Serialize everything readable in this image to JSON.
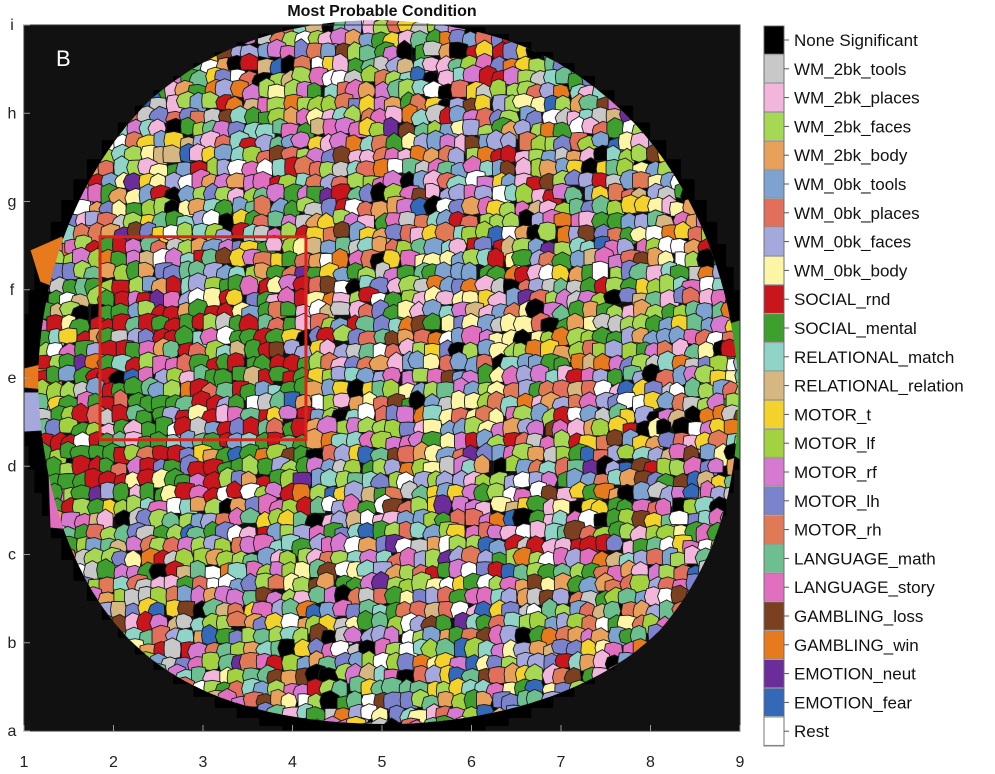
{
  "chart_data": {
    "type": "heatmap",
    "title": "Most Probable Condition",
    "panel_label": "B",
    "xlabel": "",
    "ylabel": "",
    "xlim": [
      1,
      9
    ],
    "ylim": [
      1,
      9
    ],
    "x_ticks": [
      "1",
      "2",
      "3",
      "4",
      "5",
      "6",
      "7",
      "8",
      "9"
    ],
    "y_ticks": [
      "a",
      "b",
      "c",
      "d",
      "e",
      "f",
      "g",
      "h",
      "i"
    ],
    "background_color": "#111111",
    "grid": false,
    "legend_position": "right",
    "highlight_box": {
      "x": [
        1.85,
        4.15
      ],
      "y": [
        4.3,
        6.6
      ],
      "color": "#d9241c"
    },
    "categories": [
      {
        "name": "None Significant",
        "color": "#000000"
      },
      {
        "name": "WM_2bk_tools",
        "color": "#c8c8c8"
      },
      {
        "name": "WM_2bk_places",
        "color": "#f2b6dc"
      },
      {
        "name": "WM_2bk_faces",
        "color": "#a6d854"
      },
      {
        "name": "WM_2bk_body",
        "color": "#e8a15b"
      },
      {
        "name": "WM_0bk_tools",
        "color": "#7fa3d1"
      },
      {
        "name": "WM_0bk_places",
        "color": "#e26f5b"
      },
      {
        "name": "WM_0bk_faces",
        "color": "#a4a8dc"
      },
      {
        "name": "WM_0bk_body",
        "color": "#fdf5a6"
      },
      {
        "name": "SOCIAL_rnd",
        "color": "#c8161c"
      },
      {
        "name": "SOCIAL_mental",
        "color": "#3e9e2e"
      },
      {
        "name": "RELATIONAL_match",
        "color": "#8fd4c7"
      },
      {
        "name": "RELATIONAL_relation",
        "color": "#d6b681"
      },
      {
        "name": "MOTOR_t",
        "color": "#f2d22b"
      },
      {
        "name": "MOTOR_lf",
        "color": "#a2d23f"
      },
      {
        "name": "MOTOR_rf",
        "color": "#d57ad0"
      },
      {
        "name": "MOTOR_lh",
        "color": "#7b83cc"
      },
      {
        "name": "MOTOR_rh",
        "color": "#e07a56"
      },
      {
        "name": "LANGUAGE_math",
        "color": "#6dbf90"
      },
      {
        "name": "LANGUAGE_story",
        "color": "#e16fc0"
      },
      {
        "name": "GAMBLING_loss",
        "color": "#7a4020"
      },
      {
        "name": "GAMBLING_win",
        "color": "#e87a1e"
      },
      {
        "name": "EMOTION_neut",
        "color": "#6a2d9a"
      },
      {
        "name": "EMOTION_fear",
        "color": "#3468b8"
      },
      {
        "name": "Rest",
        "color": "#ffffff"
      }
    ]
  }
}
